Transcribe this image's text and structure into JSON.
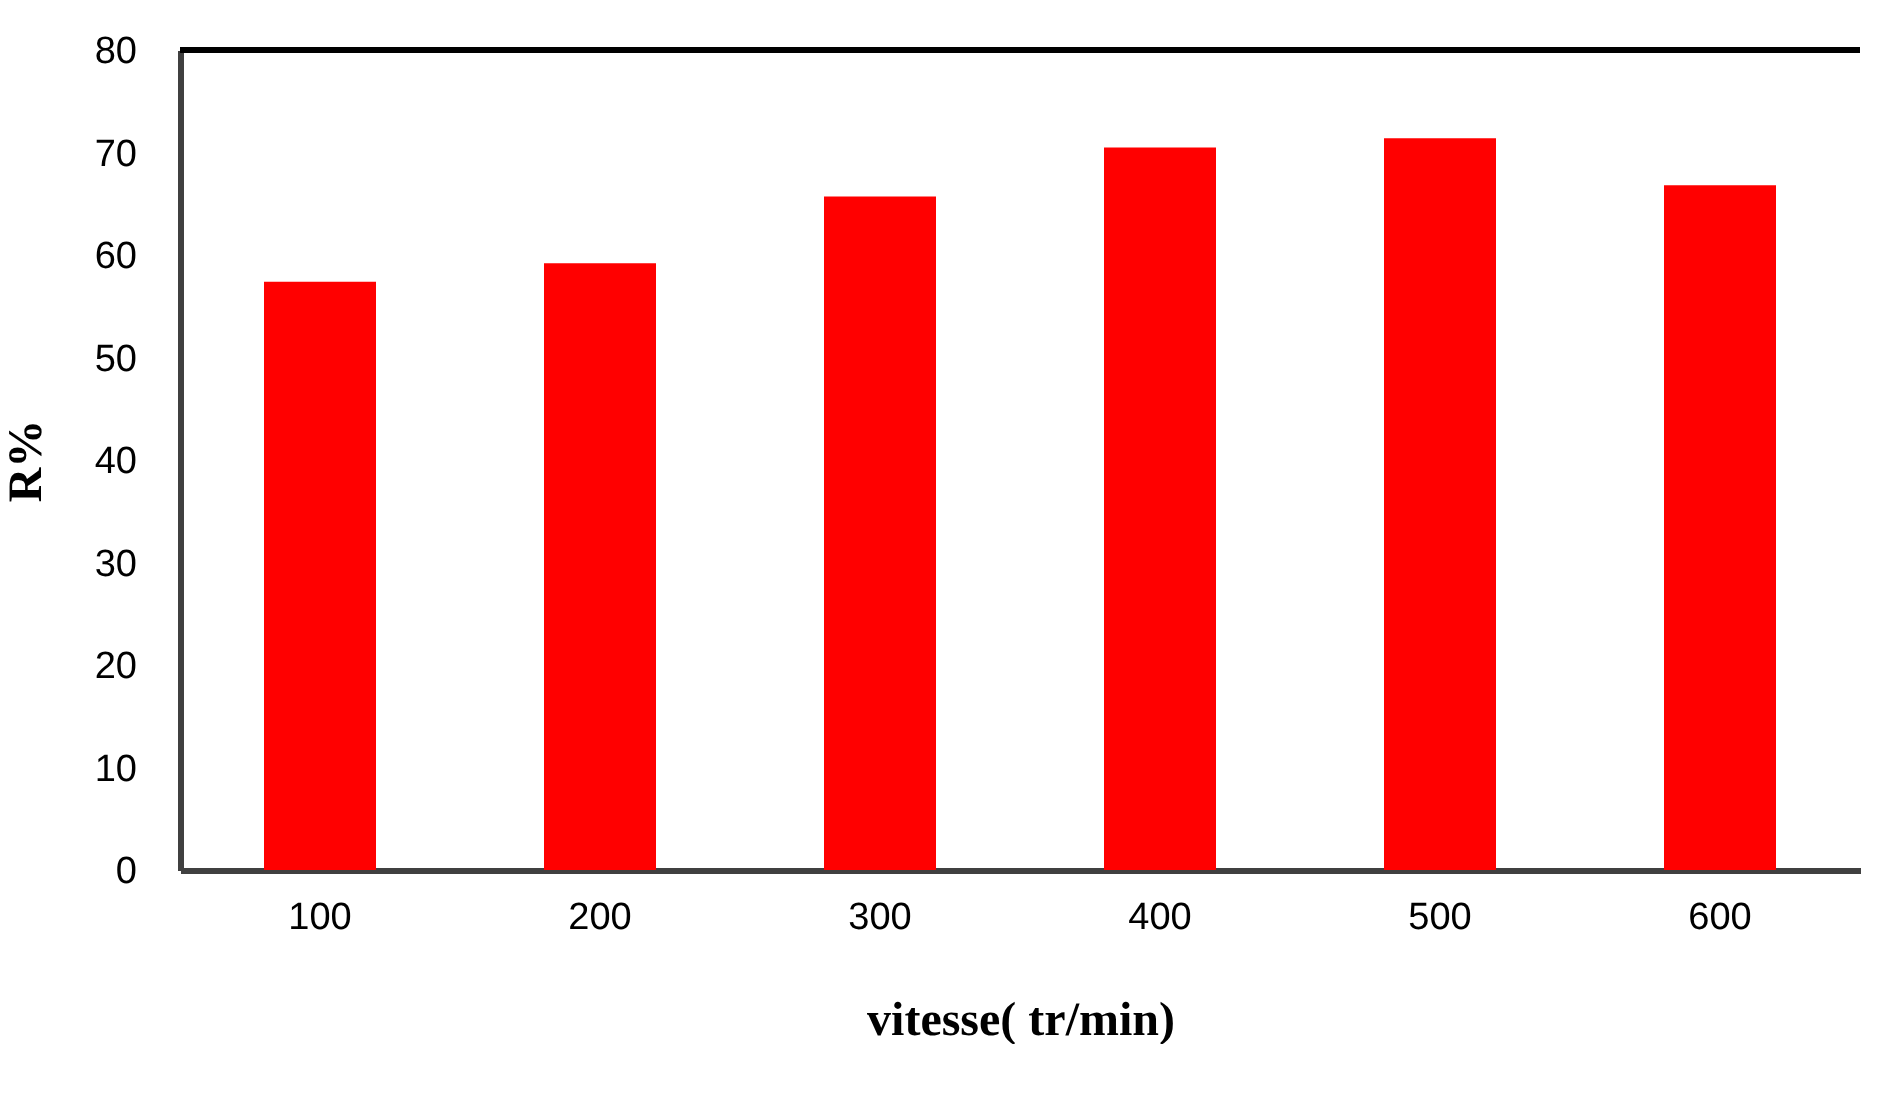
{
  "chart_data": {
    "type": "bar",
    "xlabel": "vitesse( tr/min)",
    "ylabel": "R%",
    "categories": [
      "100",
      "200",
      "300",
      "400",
      "500",
      "600"
    ],
    "values": [
      57.4,
      59.2,
      65.7,
      70.5,
      71.4,
      66.8
    ],
    "color": "#ff0000",
    "ylim": [
      0,
      80
    ],
    "yticks": [
      0,
      10,
      20,
      30,
      40,
      50,
      60,
      70,
      80
    ],
    "grid": false
  }
}
